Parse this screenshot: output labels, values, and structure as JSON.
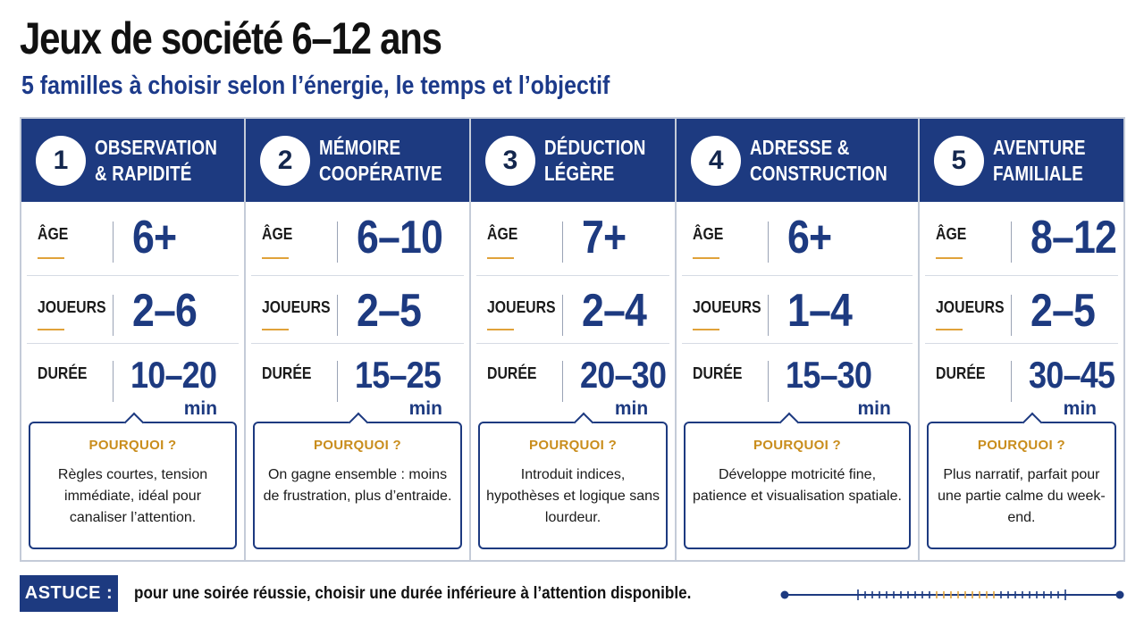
{
  "title": "Jeux de société 6–12 ans",
  "subtitle": "5 familles à choisir selon l’énergie, le temps et l’objectif",
  "labels": {
    "age": "ÂGE",
    "players": "JOUEURS",
    "duration": "DURÉE",
    "unit": "min",
    "why": "POURQUOI ?"
  },
  "families": [
    {
      "number": "1",
      "name_line1": "OBSERVATION",
      "name_line2": "& RAPIDITÉ",
      "age": "6+",
      "players": "2–6",
      "duration": "10–20",
      "why": "Règles courtes, tension immédiate, idéal pour canaliser l’attention."
    },
    {
      "number": "2",
      "name_line1": "MÉMOIRE",
      "name_line2": "COOPÉRATIVE",
      "age": "6–10",
      "players": "2–5",
      "duration": "15–25",
      "why": "On gagne ensemble : moins de frustration, plus d’entraide."
    },
    {
      "number": "3",
      "name_line1": "DÉDUCTION",
      "name_line2": "LÉGÈRE",
      "age": "7+",
      "players": "2–4",
      "duration": "20–30",
      "why": "Introduit indices, hypothèses et logique sans lourdeur."
    },
    {
      "number": "4",
      "name_line1": "ADRESSE &",
      "name_line2": "CONSTRUCTION",
      "age": "6+",
      "players": "1–4",
      "duration": "15–30",
      "why": "Développe motricité fine, patience et visualisation spatiale."
    },
    {
      "number": "5",
      "name_line1": "AVENTURE",
      "name_line2": "FAMILIALE",
      "age": "8–12",
      "players": "2–5",
      "duration": "30–45",
      "why": "Plus narratif, parfait pour une partie calme du week-end."
    }
  ],
  "tip": {
    "badge": "ASTUCE :",
    "text": "pour une soirée réussie, choisir une durée inférieure à l’attention disponible."
  },
  "colors": {
    "navy": "#1d3a80",
    "accent": "#e0a23a",
    "why_title": "#c98d1c"
  }
}
